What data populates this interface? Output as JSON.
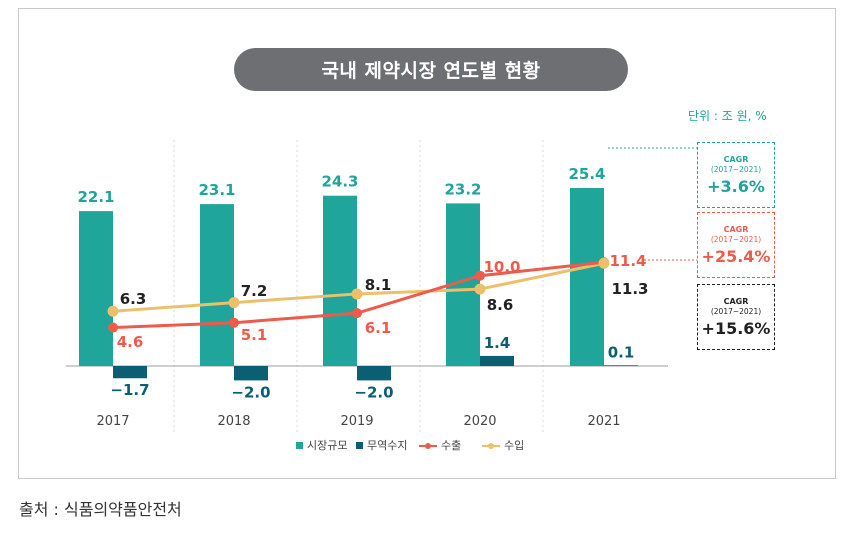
{
  "title": "국내 제약시장 연도별 현황",
  "unit": "단위 : 조 원, %",
  "source": "출처 : 식품의약품안전처",
  "colors": {
    "market": "#20a59b",
    "balance": "#0c5f73",
    "export": "#ee5b4b",
    "import": "#ecc06a"
  },
  "cagr": [
    {
      "label": "CAGR",
      "period": "(2017~2021)",
      "value": "+3.6%",
      "color": "#20a59b"
    },
    {
      "label": "CAGR",
      "period": "(2017~2021)",
      "value": "+25.4%",
      "color": "#ee5b4b"
    },
    {
      "label": "CAGR",
      "period": "(2017~2021)",
      "value": "+15.6%",
      "color": "#222222"
    }
  ],
  "chart_data": {
    "type": "bar",
    "categories": [
      "2017",
      "2018",
      "2019",
      "2020",
      "2021"
    ],
    "series": [
      {
        "name": "시장규모",
        "kind": "bar",
        "values": [
          22.1,
          23.1,
          24.3,
          23.2,
          25.4
        ],
        "labels": [
          "22.1",
          "23.1",
          "24.3",
          "23.2",
          "25.4"
        ]
      },
      {
        "name": "무역수지",
        "kind": "bar",
        "values": [
          -1.7,
          -2.0,
          -2.0,
          1.4,
          0.1
        ],
        "labels": [
          "−1.7",
          "−2.0",
          "−2.0",
          "1.4",
          "0.1"
        ]
      },
      {
        "name": "수출",
        "kind": "line",
        "values": [
          4.6,
          5.1,
          6.1,
          10.0,
          11.4
        ],
        "labels": [
          "4.6",
          "5.1",
          "6.1",
          "10.0",
          "11.4"
        ]
      },
      {
        "name": "수입",
        "kind": "line",
        "values": [
          6.3,
          7.2,
          8.1,
          8.6,
          11.3
        ],
        "labels": [
          "6.3",
          "7.2",
          "8.1",
          "8.6",
          "11.3"
        ]
      }
    ],
    "legend": [
      "시장규모",
      "무역수지",
      "수출",
      "수입"
    ],
    "legend_position": "bottom",
    "grid": "vertical dotted separators"
  }
}
